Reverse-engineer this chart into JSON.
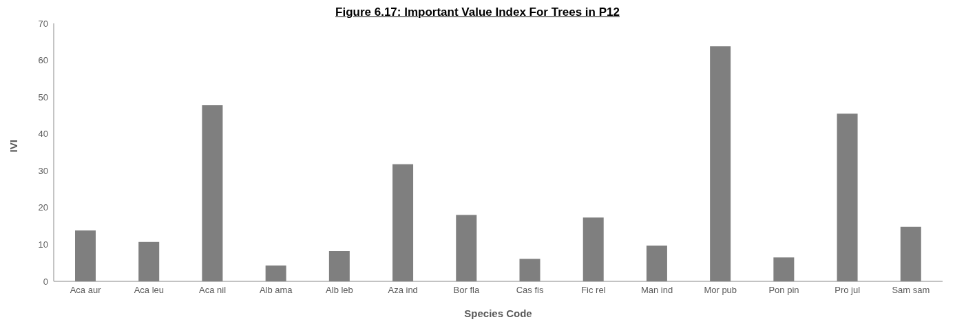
{
  "chart_data": {
    "type": "bar",
    "title": "Figure 6.17: Important Value Index For Trees in P12",
    "xlabel": "Species Code",
    "ylabel": "IVI",
    "categories": [
      "Aca aur",
      "Aca leu",
      "Aca nil",
      "Alb ama",
      "Alb leb",
      "Aza ind",
      "Bor fla",
      "Cas fis",
      "Fic rel",
      "Man ind",
      "Mor pub",
      "Pon pin",
      "Pro jul",
      "Sam sam"
    ],
    "values": [
      13.8,
      10.7,
      47.8,
      4.3,
      8.2,
      31.8,
      18,
      6.1,
      17.3,
      9.7,
      63.8,
      6.5,
      45.5,
      14.8
    ],
    "color": "#7f7f7f",
    "ylim": [
      0,
      70
    ],
    "yticks": [
      0,
      10,
      20,
      30,
      40,
      50,
      60,
      70
    ],
    "grid": false
  }
}
